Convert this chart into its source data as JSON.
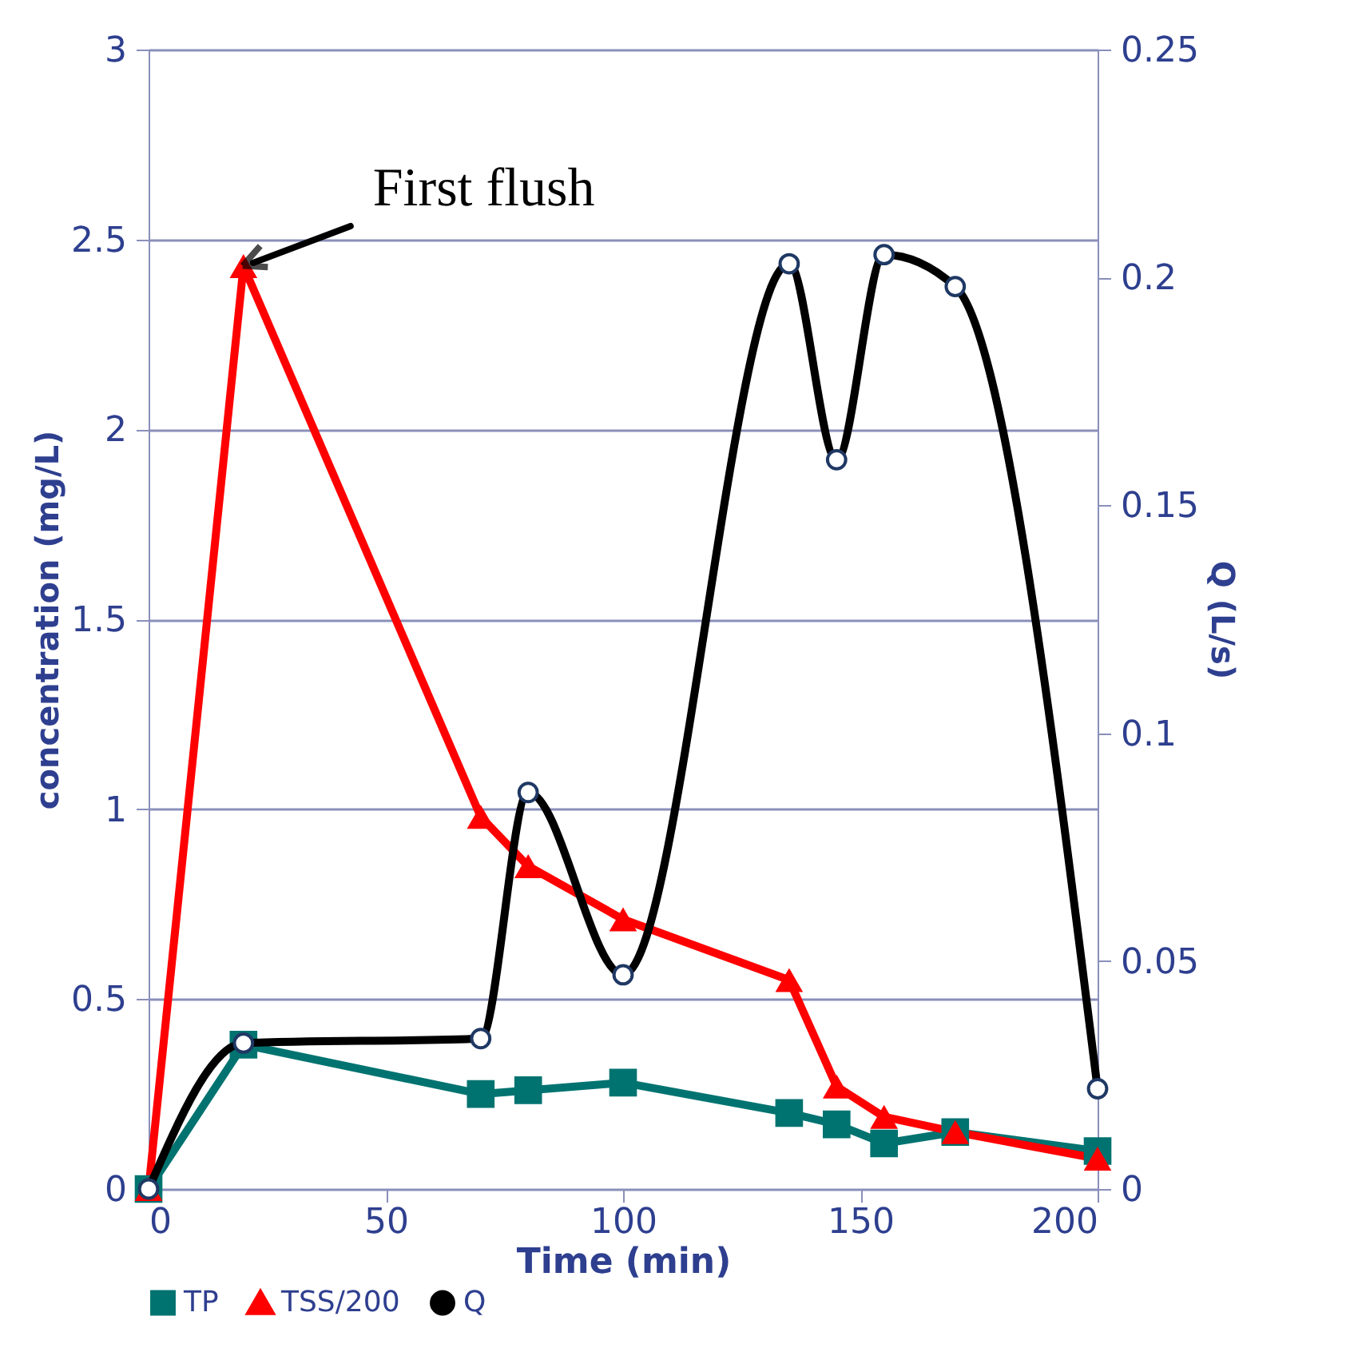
{
  "chart_data": {
    "type": "line",
    "xlabel": "Time (min)",
    "ylabel": "concentration (mg/L)",
    "y2label": "Q (L/s)",
    "xlim": [
      0,
      200
    ],
    "xticks": [
      0,
      50,
      100,
      150,
      200
    ],
    "ylim": [
      0,
      3
    ],
    "yticks": [
      0,
      0.5,
      1,
      1.5,
      2,
      2.5,
      3
    ],
    "y2lim": [
      0,
      0.25
    ],
    "y2ticks": [
      0,
      0.05,
      0.1,
      0.15,
      0.2,
      0.25
    ],
    "grid": "y",
    "legend": "bottom",
    "annotations": [
      {
        "text": "First flush",
        "x": 20,
        "y": 2.43
      }
    ],
    "series": [
      {
        "name": "TP",
        "color": "#007370",
        "marker": "square",
        "x": [
          0,
          20,
          70,
          80,
          100,
          135,
          145,
          155,
          170,
          200
        ],
        "values": [
          0,
          0.38,
          0.25,
          0.26,
          0.28,
          0.2,
          0.17,
          0.12,
          0.15,
          0.1
        ]
      },
      {
        "name": "TSS/200",
        "color": "#ff0000",
        "marker": "triangle",
        "x": [
          0,
          20,
          70,
          80,
          100,
          135,
          145,
          155,
          170,
          200
        ],
        "values": [
          0,
          2.43,
          0.98,
          0.85,
          0.71,
          0.55,
          0.27,
          0.19,
          0.15,
          0.08
        ]
      },
      {
        "name": "Q",
        "color": "#000000",
        "marker": "circle",
        "axis": "y2",
        "x": [
          0,
          20,
          70,
          80,
          100,
          135,
          145,
          155,
          170,
          200
        ],
        "values": [
          0,
          0.032,
          0.033,
          0.087,
          0.047,
          0.203,
          0.16,
          0.205,
          0.198,
          0.022
        ]
      }
    ]
  }
}
